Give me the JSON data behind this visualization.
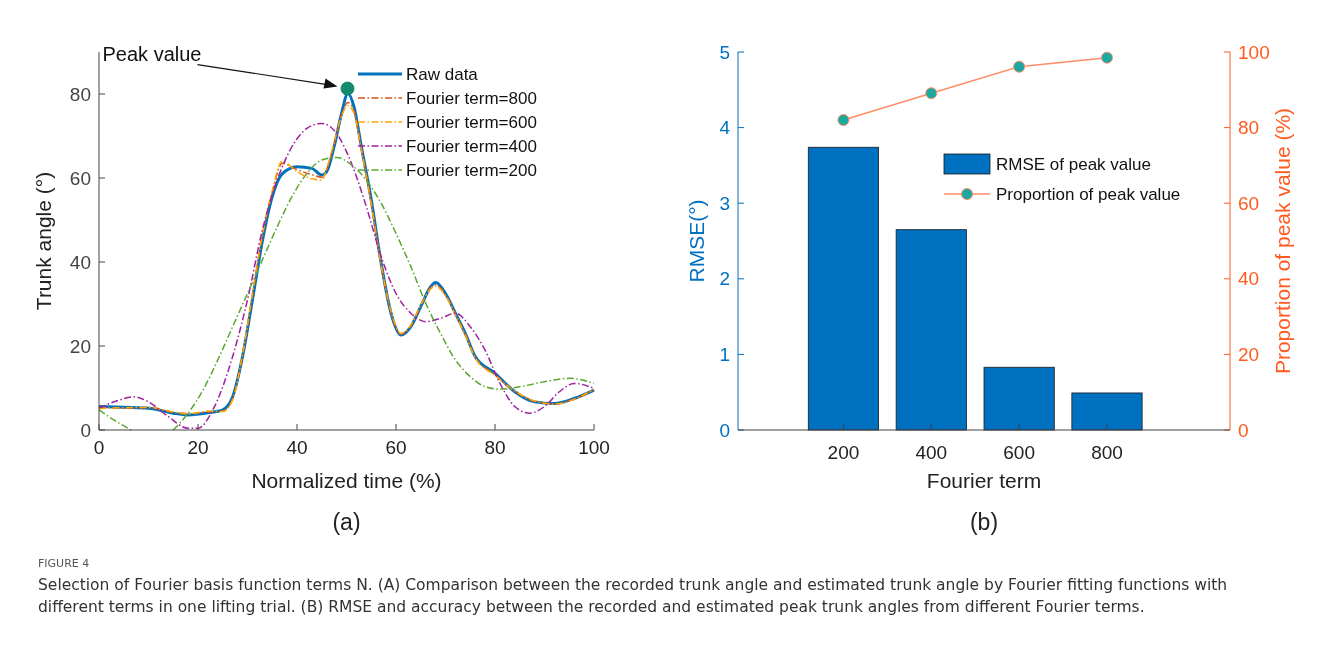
{
  "chart_data": [
    {
      "type": "line",
      "title": "(a)",
      "xlabel": "Normalized time (%)",
      "ylabel": "Trunk angle (°)",
      "xlim": [
        0,
        100
      ],
      "xticks": [
        0,
        20,
        40,
        60,
        80,
        100
      ],
      "ylim": [
        0,
        90
      ],
      "yticks": [
        0,
        20,
        40,
        60,
        80
      ],
      "legend": "top right",
      "grid": false,
      "annotations": [
        "Peak value"
      ],
      "series": [
        {
          "name": "Raw data",
          "color": "#0072bd",
          "line_style": "solid",
          "x": [
            0,
            5,
            10,
            15,
            18,
            22,
            25,
            27,
            29,
            31,
            33,
            35,
            37,
            40,
            43,
            45,
            46,
            47.5,
            49,
            50.3,
            51.5,
            53,
            55,
            57,
            59,
            61,
            63,
            65,
            67,
            68,
            70,
            72,
            74,
            76,
            80,
            84,
            88,
            92,
            96,
            100
          ],
          "values": [
            5.6,
            5.4,
            5.2,
            4,
            3.6,
            4.1,
            4.8,
            7.9,
            17.5,
            31,
            45,
            55.6,
            61,
            62.7,
            62.3,
            60.7,
            61.5,
            67.5,
            75.4,
            80.2,
            77,
            67.5,
            54.8,
            39.7,
            27.8,
            22.6,
            24.6,
            29.4,
            34.1,
            35.1,
            32.5,
            27.8,
            23,
            17.5,
            13.5,
            9.1,
            6.7,
            6.3,
            7.5,
            9.5
          ]
        },
        {
          "name": "Fourier term=800",
          "color": "#d95319",
          "line_style": "dashed",
          "x": [
            0,
            5,
            10,
            15,
            18,
            22,
            25,
            27,
            29,
            31,
            33,
            35,
            37,
            40,
            43,
            45,
            46,
            47.5,
            49,
            50.3,
            51.5,
            53,
            55,
            57,
            59,
            61,
            63,
            65,
            67,
            68,
            70,
            72,
            74,
            76,
            80,
            84,
            88,
            92,
            96,
            100
          ],
          "values": [
            5.3,
            5.2,
            5.3,
            4.2,
            3.9,
            4.3,
            4.5,
            7.5,
            17.8,
            32,
            46,
            56.5,
            63.5,
            62,
            60.8,
            60.2,
            62,
            68,
            75,
            78,
            76,
            67,
            54,
            39.5,
            28,
            22.8,
            24.8,
            29.6,
            33.8,
            34.5,
            32.2,
            27.6,
            22.8,
            17.3,
            13.2,
            9.2,
            6.8,
            6.2,
            7.4,
            9.6
          ]
        },
        {
          "name": "Fourier term=600",
          "color": "#ffa500",
          "line_style": "dashed",
          "x": [
            0,
            5,
            10,
            15,
            18,
            22,
            25,
            27,
            29,
            31,
            33,
            35,
            37,
            40,
            43,
            45,
            46,
            47.5,
            49,
            50.3,
            51.5,
            53,
            55,
            57,
            59,
            61,
            63,
            65,
            67,
            68,
            70,
            72,
            74,
            76,
            80,
            84,
            88,
            92,
            96,
            100
          ],
          "values": [
            5.1,
            5.3,
            5.4,
            4.3,
            3.8,
            4.5,
            4.4,
            7.2,
            18,
            32.5,
            46.5,
            57,
            64,
            61.5,
            59.8,
            59.5,
            62.3,
            68.5,
            74.8,
            77.2,
            75.5,
            66.8,
            53.8,
            39.3,
            28.2,
            23,
            25,
            29.8,
            33.6,
            34.2,
            32,
            27.4,
            22.6,
            17.2,
            13,
            9.3,
            6.9,
            6.2,
            7.3,
            9.7
          ]
        },
        {
          "name": "Fourier term=400",
          "color": "#a020a0",
          "line_style": "dashed",
          "x": [
            0,
            4,
            7,
            10,
            14,
            18,
            20,
            23,
            27,
            30,
            33,
            36,
            39,
            42,
            45,
            48,
            51,
            54,
            57,
            60,
            63,
            66,
            69,
            72,
            75,
            78,
            81,
            84,
            87,
            90,
            93,
            96,
            100
          ],
          "values": [
            5.2,
            7.1,
            7.9,
            6.7,
            3.2,
            0.4,
            0.4,
            4.8,
            17.5,
            31,
            47.6,
            59.5,
            67.5,
            71.8,
            73,
            70.6,
            63.5,
            53.2,
            41.3,
            32.5,
            27.8,
            25.8,
            26.6,
            27.8,
            24.6,
            19,
            11.1,
            5.6,
            4,
            5.6,
            9.1,
            11.1,
            9.9
          ]
        },
        {
          "name": "Fourier term=200",
          "color": "#5aa832",
          "line_style": "dashed",
          "x": [
            0,
            3,
            6.5,
            10,
            15,
            18,
            21,
            24,
            27,
            30,
            33,
            36,
            39,
            42,
            45,
            48,
            51,
            54,
            57,
            60,
            63,
            66,
            69,
            72,
            75,
            78,
            81,
            85,
            90,
            95,
            100
          ],
          "values": [
            4.8,
            2.4,
            0,
            null,
            0,
            4,
            9.5,
            16.7,
            24.6,
            32.5,
            40.5,
            48.4,
            55.6,
            61.1,
            64.3,
            64.9,
            63.1,
            59.5,
            54,
            46.8,
            38.9,
            30.2,
            23,
            16.7,
            12.7,
            10.3,
            9.7,
            10.3,
            11.5,
            12.3,
            11.1
          ]
        },
        {
          "type": "scatter",
          "color": "#138a6b",
          "marker": "circle",
          "x": [
            50.2
          ],
          "values": [
            81.3
          ]
        }
      ]
    },
    {
      "type": "bar",
      "title": "(b)",
      "xlabel": "Fourier term",
      "ylabel": "RMSE(°)",
      "y2label": "Proportion of peak value (%)",
      "categories": [
        "200",
        "400",
        "600",
        "800"
      ],
      "annotations": [
        "FIGURE 4",
        "Selection of Fourier basis function terms N. (A) Comparison between the recorded trunk angle and estimated trunk angle by Fourier fitting functions with different terms in one lifting trial. (B) RMSE and accuracy between the recorded and estimated peak trunk angles from different Fourier terms."
      ],
      "ylim": [
        0,
        5
      ],
      "yticks": [
        0,
        1,
        2,
        3,
        4,
        5
      ],
      "y2lim": [
        0,
        100
      ],
      "y2ticks": [
        0,
        20,
        40,
        60,
        80,
        100
      ],
      "legend": "top right",
      "grid": false,
      "series": [
        {
          "name": "RMSE of peak value",
          "color": "#0070c0",
          "values": [
            3.74,
            2.65,
            0.83,
            0.49
          ]
        },
        {
          "name": "Proportion of peak value",
          "type": "line",
          "axis": "y2",
          "color": "#ff8c66",
          "marker": "circle",
          "values": [
            82,
            89.1,
            96.1,
            98.5
          ]
        }
      ]
    }
  ]
}
